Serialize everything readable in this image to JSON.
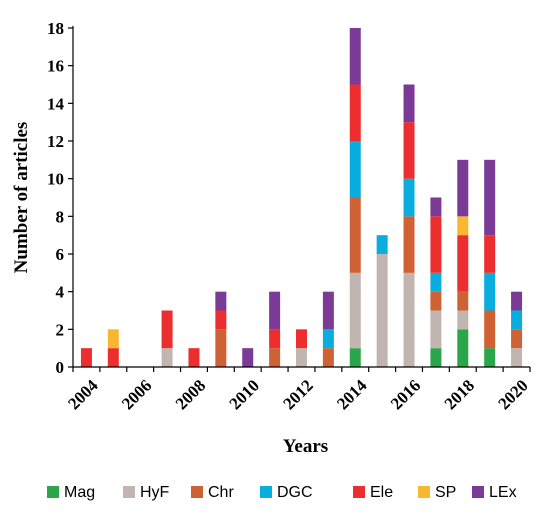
{
  "chart_data": {
    "type": "bar",
    "stacked": true,
    "title": "",
    "xlabel": "Years",
    "ylabel": "Number of articles",
    "ylim": [
      0,
      18
    ],
    "y_ticks": [
      0,
      2,
      4,
      6,
      8,
      10,
      12,
      14,
      16,
      18
    ],
    "x_tick_labels": [
      "2004",
      "2006",
      "2008",
      "2010",
      "2012",
      "2014",
      "2016",
      "2018",
      "2020"
    ],
    "categories": [
      "2004",
      "2005",
      "2006",
      "2007",
      "2008",
      "2009",
      "2010",
      "2011",
      "2012",
      "2013",
      "2014",
      "2015",
      "2016",
      "2017",
      "2018",
      "2019",
      "2020"
    ],
    "series": [
      {
        "name": "Mag",
        "color": "#2ca64a",
        "values": [
          0,
          0,
          0,
          0,
          0,
          0,
          0,
          0,
          0,
          0,
          1,
          0,
          0,
          1,
          2,
          1,
          0
        ]
      },
      {
        "name": "HyF",
        "color": "#c1b5b0",
        "values": [
          0,
          0,
          0,
          1,
          0,
          0,
          0,
          0,
          1,
          0,
          4,
          6,
          5,
          2,
          1,
          0,
          1
        ]
      },
      {
        "name": "Chr",
        "color": "#cf6235",
        "values": [
          0,
          0,
          0,
          0,
          0,
          2,
          0,
          1,
          0,
          1,
          4,
          0,
          3,
          1,
          1,
          2,
          1
        ]
      },
      {
        "name": "DGC",
        "color": "#0aaede",
        "values": [
          0,
          0,
          0,
          0,
          0,
          0,
          0,
          0,
          0,
          1,
          3,
          1,
          2,
          1,
          0,
          2,
          1
        ]
      },
      {
        "name": "Ele",
        "color": "#ec2f2e",
        "values": [
          1,
          1,
          0,
          2,
          1,
          1,
          0,
          1,
          1,
          0,
          3,
          0,
          3,
          3,
          3,
          2,
          0
        ]
      },
      {
        "name": "SP",
        "color": "#f7b731",
        "values": [
          0,
          1,
          0,
          0,
          0,
          0,
          0,
          0,
          0,
          0,
          0,
          0,
          0,
          0,
          1,
          0,
          0
        ]
      },
      {
        "name": "LEx",
        "color": "#7b3a95",
        "values": [
          0,
          0,
          0,
          0,
          0,
          1,
          1,
          2,
          0,
          2,
          3,
          0,
          2,
          1,
          3,
          4,
          1
        ]
      }
    ],
    "grid": false,
    "legend_position": "bottom"
  }
}
